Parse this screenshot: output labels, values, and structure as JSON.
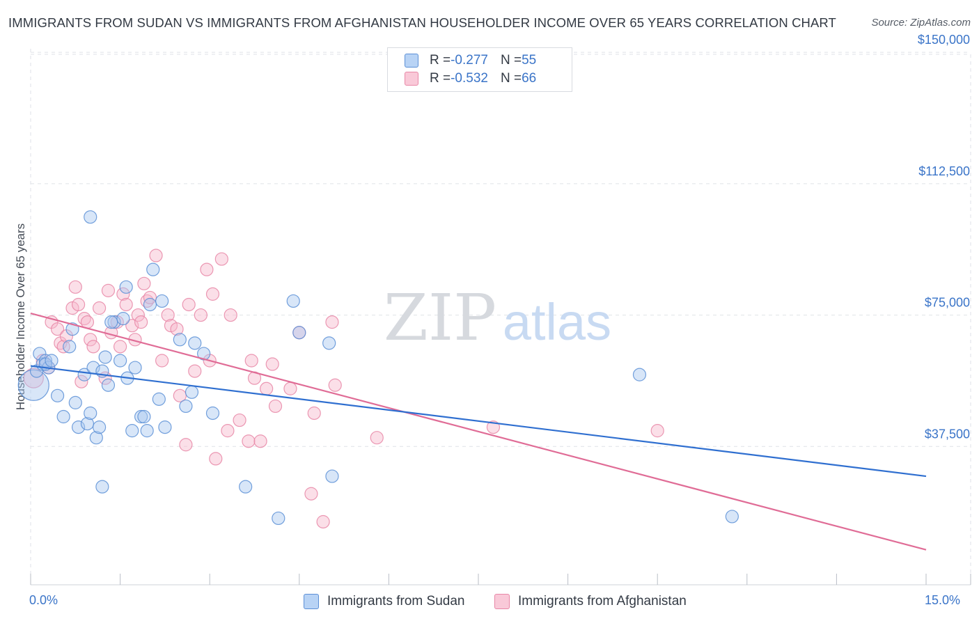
{
  "header": {
    "title": "IMMIGRANTS FROM SUDAN VS IMMIGRANTS FROM AFGHANISTAN HOUSEHOLDER INCOME OVER 65 YEARS CORRELATION CHART",
    "source": "Source: ZipAtlas.com"
  },
  "watermark": {
    "zip": "ZIP",
    "atlas": "atlas"
  },
  "legend": {
    "rows": [
      {
        "r_label": "R = ",
        "r_value": "-0.277",
        "n_label": "N = ",
        "n_value": "55"
      },
      {
        "r_label": "R = ",
        "r_value": "-0.532",
        "n_label": "N = ",
        "n_value": "66"
      }
    ]
  },
  "bottom_legend": {
    "sudan": "Immigrants from Sudan",
    "afghanistan": "Immigrants from Afghanistan"
  },
  "colors": {
    "sudan_fill": "#a8c8f0",
    "sudan_stroke": "#5b8fd6",
    "sudan_line": "#2f6fd0",
    "afghan_fill": "#f6b8cc",
    "afghan_stroke": "#e886a6",
    "afghan_line": "#e06c96",
    "axis_label": "#3a74c8",
    "grid": "#dfe2e7"
  },
  "chart_data": {
    "type": "scatter",
    "title": "IMMIGRANTS FROM SUDAN VS IMMIGRANTS FROM AFGHANISTAN HOUSEHOLDER INCOME OVER 65 YEARS CORRELATION CHART",
    "xlabel": "",
    "ylabel": "Householder Income Over 65 years",
    "xlim": [
      0,
      15
    ],
    "ylim": [
      0,
      155000
    ],
    "x_tick_labels": [
      "0.0%",
      "15.0%"
    ],
    "y_ticks": [
      37500,
      75000,
      112500,
      150000
    ],
    "y_tick_labels": [
      "$37,500",
      "$75,000",
      "$112,500",
      "$150,000"
    ],
    "grid": true,
    "series": [
      {
        "name": "Immigrants from Sudan",
        "r": -0.277,
        "n": 55,
        "trend": {
          "x": [
            0,
            15
          ],
          "y": [
            60500,
            29000
          ]
        },
        "points": [
          [
            0.05,
            55000,
            22
          ],
          [
            0.1,
            59000,
            9
          ],
          [
            0.15,
            64000,
            9
          ],
          [
            0.2,
            61000,
            9
          ],
          [
            0.25,
            62000,
            9
          ],
          [
            0.3,
            60000,
            9
          ],
          [
            0.45,
            52000,
            9
          ],
          [
            0.55,
            46000,
            9
          ],
          [
            0.65,
            66000,
            9
          ],
          [
            0.7,
            71000,
            9
          ],
          [
            0.75,
            50000,
            9
          ],
          [
            0.8,
            43000,
            9
          ],
          [
            0.9,
            58000,
            9
          ],
          [
            0.95,
            44000,
            9
          ],
          [
            1.0,
            47000,
            9
          ],
          [
            1.05,
            60000,
            9
          ],
          [
            1.0,
            103000,
            9
          ],
          [
            1.1,
            40000,
            9
          ],
          [
            1.15,
            43000,
            9
          ],
          [
            1.2,
            26000,
            9
          ],
          [
            1.2,
            59000,
            9
          ],
          [
            1.25,
            63000,
            9
          ],
          [
            1.3,
            55000,
            9
          ],
          [
            1.4,
            73000,
            9
          ],
          [
            1.5,
            62000,
            9
          ],
          [
            1.55,
            74000,
            9
          ],
          [
            1.6,
            83000,
            9
          ],
          [
            1.62,
            57000,
            9
          ],
          [
            1.7,
            42000,
            9
          ],
          [
            1.75,
            60000,
            9
          ],
          [
            1.85,
            46000,
            9
          ],
          [
            1.9,
            46000,
            9
          ],
          [
            1.95,
            42000,
            9
          ],
          [
            2.0,
            78000,
            9
          ],
          [
            2.05,
            88000,
            9
          ],
          [
            2.15,
            51000,
            9
          ],
          [
            2.2,
            79000,
            9
          ],
          [
            2.25,
            43000,
            9
          ],
          [
            2.6,
            49000,
            9
          ],
          [
            2.7,
            53000,
            9
          ],
          [
            2.75,
            67000,
            9
          ],
          [
            2.9,
            64000,
            9
          ],
          [
            3.05,
            47000,
            9
          ],
          [
            3.6,
            26000,
            9
          ],
          [
            4.15,
            17000,
            9
          ],
          [
            4.4,
            79000,
            9
          ],
          [
            4.5,
            70000,
            9
          ],
          [
            5.0,
            67000,
            9
          ],
          [
            5.05,
            29000,
            9
          ],
          [
            10.2,
            58000,
            9
          ],
          [
            11.75,
            17500,
            9
          ],
          [
            0.25,
            61000,
            9
          ],
          [
            0.35,
            62000,
            9
          ],
          [
            1.35,
            73000,
            9
          ],
          [
            2.5,
            68000,
            9
          ]
        ]
      },
      {
        "name": "Immigrants from Afghanistan",
        "r": -0.532,
        "n": 66,
        "trend": {
          "x": [
            0,
            15
          ],
          "y": [
            75500,
            8000
          ]
        },
        "points": [
          [
            0.05,
            57000,
            14
          ],
          [
            0.2,
            62000,
            9
          ],
          [
            0.3,
            60000,
            9
          ],
          [
            0.35,
            73000,
            9
          ],
          [
            0.45,
            71000,
            9
          ],
          [
            0.5,
            67000,
            9
          ],
          [
            0.55,
            66000,
            9
          ],
          [
            0.6,
            69000,
            9
          ],
          [
            0.7,
            77000,
            9
          ],
          [
            0.75,
            83000,
            9
          ],
          [
            0.8,
            78000,
            9
          ],
          [
            0.85,
            56000,
            9
          ],
          [
            0.9,
            74000,
            9
          ],
          [
            0.95,
            73000,
            9
          ],
          [
            1.0,
            68000,
            9
          ],
          [
            1.05,
            66000,
            9
          ],
          [
            1.15,
            77000,
            9
          ],
          [
            1.25,
            57000,
            9
          ],
          [
            1.3,
            82000,
            9
          ],
          [
            1.35,
            70000,
            9
          ],
          [
            1.45,
            73000,
            9
          ],
          [
            1.5,
            66000,
            9
          ],
          [
            1.55,
            81000,
            9
          ],
          [
            1.6,
            78000,
            9
          ],
          [
            1.7,
            72000,
            9
          ],
          [
            1.75,
            68000,
            9
          ],
          [
            1.8,
            75000,
            9
          ],
          [
            1.85,
            73000,
            9
          ],
          [
            1.9,
            84000,
            9
          ],
          [
            1.95,
            79000,
            9
          ],
          [
            2.0,
            80000,
            9
          ],
          [
            2.1,
            92000,
            9
          ],
          [
            2.2,
            62000,
            9
          ],
          [
            2.3,
            75000,
            9
          ],
          [
            2.35,
            72000,
            9
          ],
          [
            2.45,
            71000,
            9
          ],
          [
            2.5,
            52000,
            9
          ],
          [
            2.6,
            38000,
            9
          ],
          [
            2.65,
            78000,
            9
          ],
          [
            2.75,
            59000,
            9
          ],
          [
            2.85,
            75000,
            9
          ],
          [
            2.95,
            88000,
            9
          ],
          [
            3.0,
            62000,
            9
          ],
          [
            3.05,
            81000,
            9
          ],
          [
            3.1,
            34000,
            9
          ],
          [
            3.2,
            91000,
            9
          ],
          [
            3.3,
            42000,
            9
          ],
          [
            3.35,
            75000,
            9
          ],
          [
            3.5,
            45000,
            9
          ],
          [
            3.65,
            39000,
            9
          ],
          [
            3.7,
            62000,
            9
          ],
          [
            3.75,
            57000,
            9
          ],
          [
            3.85,
            39000,
            9
          ],
          [
            3.95,
            54000,
            9
          ],
          [
            4.05,
            61000,
            9
          ],
          [
            4.1,
            49000,
            9
          ],
          [
            4.35,
            54000,
            9
          ],
          [
            4.5,
            70000,
            9
          ],
          [
            4.7,
            24000,
            9
          ],
          [
            4.75,
            47000,
            9
          ],
          [
            4.9,
            16000,
            9
          ],
          [
            5.05,
            73000,
            9
          ],
          [
            5.1,
            55000,
            9
          ],
          [
            5.8,
            40000,
            9
          ],
          [
            7.75,
            43000,
            9
          ],
          [
            10.5,
            42000,
            9
          ]
        ]
      }
    ]
  }
}
